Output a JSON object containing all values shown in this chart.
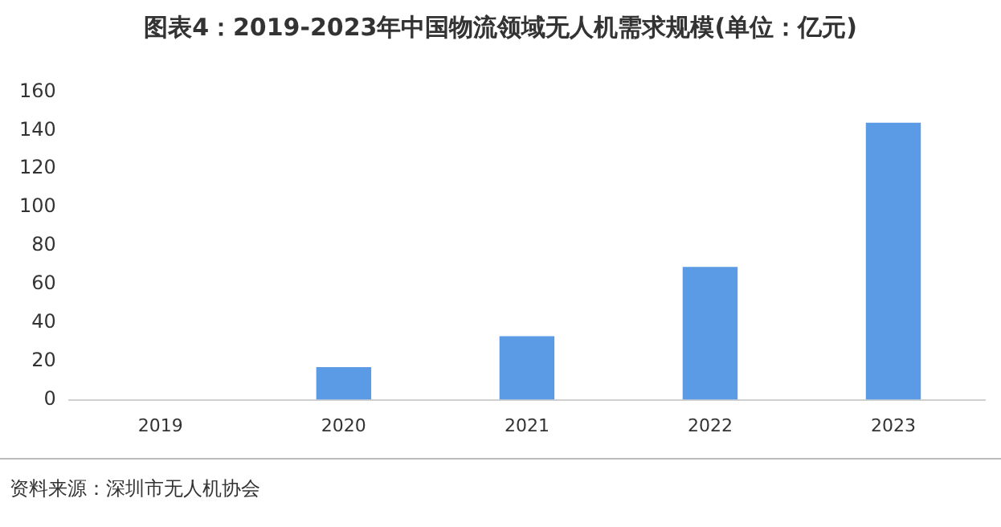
{
  "chart_data": {
    "type": "bar",
    "title": "图表4：2019-2023年中国物流领域无人机需求规模(单位：亿元)",
    "categories": [
      "2019",
      "2020",
      "2021",
      "2022",
      "2023"
    ],
    "values": [
      0,
      17,
      33,
      69,
      144
    ],
    "color": "#5b9be6",
    "ylim": [
      0,
      160
    ],
    "yticks": [
      0,
      20,
      40,
      60,
      80,
      100,
      120,
      140,
      160
    ],
    "grid": false,
    "legend": false,
    "annotations": [
      "资料来源：深圳市无人机协会"
    ]
  }
}
